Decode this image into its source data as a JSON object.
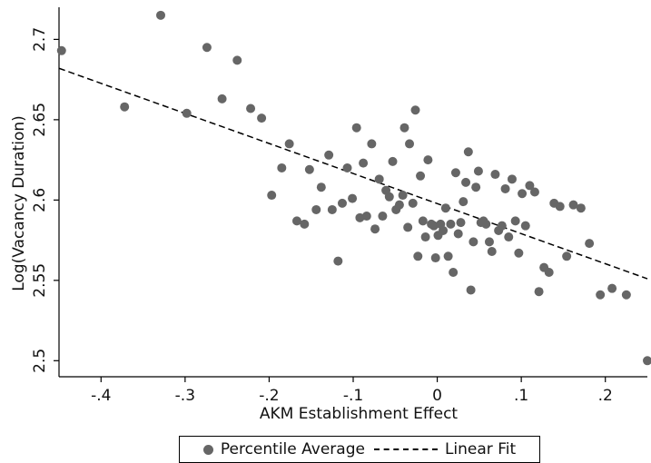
{
  "chart_data": {
    "type": "scatter",
    "title": "",
    "xlabel": "AKM Establishment Effect",
    "ylabel": "Log(Vacancy Duration)",
    "xlim": [
      -0.45,
      0.25
    ],
    "ylim": [
      2.49,
      2.72
    ],
    "x_ticks": [
      -0.4,
      -0.3,
      -0.2,
      -0.1,
      0,
      0.1,
      0.2
    ],
    "x_tick_labels": [
      "-.4",
      "-.3",
      "-.2",
      "-.1",
      "0",
      ".1",
      ".2"
    ],
    "y_ticks": [
      2.5,
      2.55,
      2.6,
      2.65,
      2.7
    ],
    "y_tick_labels": [
      "2.5",
      "2.55",
      "2.6",
      "2.65",
      "2.7"
    ],
    "grid": false,
    "legend_position": "bottom",
    "colors": {
      "points": "#666666",
      "fit": "#000000",
      "axis": "#000000"
    },
    "series": [
      {
        "name": "Percentile Average",
        "kind": "scatter",
        "points": [
          [
            -0.447,
            2.693
          ],
          [
            -0.372,
            2.658
          ],
          [
            -0.329,
            2.715
          ],
          [
            -0.298,
            2.654
          ],
          [
            -0.274,
            2.695
          ],
          [
            -0.256,
            2.663
          ],
          [
            -0.238,
            2.687
          ],
          [
            -0.222,
            2.657
          ],
          [
            -0.209,
            2.651
          ],
          [
            -0.197,
            2.603
          ],
          [
            -0.185,
            2.62
          ],
          [
            -0.176,
            2.635
          ],
          [
            -0.167,
            2.587
          ],
          [
            -0.158,
            2.585
          ],
          [
            -0.152,
            2.619
          ],
          [
            -0.144,
            2.594
          ],
          [
            -0.138,
            2.608
          ],
          [
            -0.129,
            2.628
          ],
          [
            -0.125,
            2.594
          ],
          [
            -0.118,
            2.562
          ],
          [
            -0.113,
            2.598
          ],
          [
            -0.107,
            2.62
          ],
          [
            -0.101,
            2.601
          ],
          [
            -0.096,
            2.645
          ],
          [
            -0.092,
            2.589
          ],
          [
            -0.088,
            2.623
          ],
          [
            -0.084,
            2.59
          ],
          [
            -0.078,
            2.635
          ],
          [
            -0.074,
            2.582
          ],
          [
            -0.069,
            2.613
          ],
          [
            -0.065,
            2.59
          ],
          [
            -0.061,
            2.606
          ],
          [
            -0.057,
            2.602
          ],
          [
            -0.053,
            2.624
          ],
          [
            -0.049,
            2.594
          ],
          [
            -0.045,
            2.597
          ],
          [
            -0.041,
            2.603
          ],
          [
            -0.039,
            2.645
          ],
          [
            -0.035,
            2.583
          ],
          [
            -0.033,
            2.635
          ],
          [
            -0.029,
            2.598
          ],
          [
            -0.026,
            2.656
          ],
          [
            -0.023,
            2.565
          ],
          [
            -0.02,
            2.615
          ],
          [
            -0.017,
            2.587
          ],
          [
            -0.014,
            2.577
          ],
          [
            -0.011,
            2.625
          ],
          [
            -0.007,
            2.585
          ],
          [
            -0.004,
            2.584
          ],
          [
            -0.002,
            2.564
          ],
          [
            0.001,
            2.578
          ],
          [
            0.004,
            2.585
          ],
          [
            0.007,
            2.581
          ],
          [
            0.01,
            2.595
          ],
          [
            0.013,
            2.565
          ],
          [
            0.016,
            2.585
          ],
          [
            0.019,
            2.555
          ],
          [
            0.022,
            2.617
          ],
          [
            0.025,
            2.579
          ],
          [
            0.028,
            2.586
          ],
          [
            0.031,
            2.599
          ],
          [
            0.034,
            2.611
          ],
          [
            0.037,
            2.63
          ],
          [
            0.04,
            2.544
          ],
          [
            0.043,
            2.574
          ],
          [
            0.046,
            2.608
          ],
          [
            0.049,
            2.618
          ],
          [
            0.052,
            2.586
          ],
          [
            0.055,
            2.587
          ],
          [
            0.058,
            2.585
          ],
          [
            0.062,
            2.574
          ],
          [
            0.065,
            2.568
          ],
          [
            0.069,
            2.616
          ],
          [
            0.073,
            2.581
          ],
          [
            0.077,
            2.584
          ],
          [
            0.081,
            2.607
          ],
          [
            0.085,
            2.577
          ],
          [
            0.089,
            2.613
          ],
          [
            0.093,
            2.587
          ],
          [
            0.097,
            2.567
          ],
          [
            0.101,
            2.604
          ],
          [
            0.105,
            2.584
          ],
          [
            0.11,
            2.609
          ],
          [
            0.116,
            2.605
          ],
          [
            0.121,
            2.543
          ],
          [
            0.127,
            2.558
          ],
          [
            0.133,
            2.555
          ],
          [
            0.139,
            2.598
          ],
          [
            0.146,
            2.596
          ],
          [
            0.154,
            2.565
          ],
          [
            0.162,
            2.597
          ],
          [
            0.171,
            2.595
          ],
          [
            0.181,
            2.573
          ],
          [
            0.194,
            2.541
          ],
          [
            0.208,
            2.545
          ],
          [
            0.225,
            2.541
          ],
          [
            0.25,
            2.5
          ]
        ]
      },
      {
        "name": "Linear Fit",
        "kind": "line",
        "dash": true,
        "points": [
          [
            -0.45,
            2.682
          ],
          [
            0.25,
            2.551
          ]
        ]
      }
    ]
  },
  "legend": {
    "items": [
      {
        "label": "Percentile Average"
      },
      {
        "label": "Linear Fit"
      }
    ]
  }
}
